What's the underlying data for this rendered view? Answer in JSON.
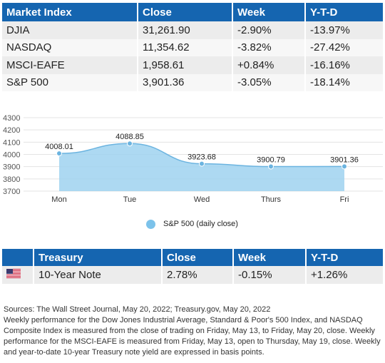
{
  "market_table": {
    "headers": [
      "Market Index",
      "Close",
      "Week",
      "Y-T-D"
    ],
    "rows": [
      [
        "DJIA",
        "31,261.90",
        "-2.90%",
        "-13.97%"
      ],
      [
        "NASDAQ",
        "11,354.62",
        "-3.82%",
        "-27.42%"
      ],
      [
        "MSCI-EAFE",
        "1,958.61",
        "+0.84%",
        "-16.16%"
      ],
      [
        "S&P 500",
        "3,901.36",
        "-3.05%",
        "-18.14%"
      ]
    ]
  },
  "chart_data": {
    "type": "area",
    "categories": [
      "Mon",
      "Tue",
      "Wed",
      "Thurs",
      "Fri"
    ],
    "series": [
      {
        "name": "S&P 500 (daily close)",
        "values": [
          4008.01,
          4088.85,
          3923.68,
          3900.79,
          3901.36
        ]
      }
    ],
    "data_labels": [
      "4008.01",
      "4088.85",
      "3923.68",
      "3900.79",
      "3901.36"
    ],
    "yticks": [
      "3700",
      "3800",
      "3900",
      "4000",
      "4100",
      "4200",
      "4300"
    ],
    "ylim": [
      3700,
      4300
    ],
    "grid": true,
    "legend_position": "bottom",
    "colors": {
      "fill": "#9fd2f0",
      "line": "#6cb4e0",
      "point": "#6cb4e0"
    }
  },
  "treasury_table": {
    "headers": [
      "",
      "Treasury",
      "Close",
      "Week",
      "Y-T-D"
    ],
    "row": {
      "icon": "us-flag-icon",
      "label": "10-Year Note",
      "close": "2.78%",
      "week": "-0.15%",
      "ytd": "+1.26%"
    }
  },
  "notes": {
    "line1": "Sources: The Wall Street Journal, May 20, 2022; Treasury.gov, May 20, 2022",
    "line2": "Weekly performance for the Dow Jones Industrial Average, Standard & Poor's 500 Index, and NASDAQ Composite Index is measured from the close of trading on Friday, May 13, to Friday, May 20, close. Weekly performance for the MSCI-EAFE is measured from Friday, May 13, open to Thursday, May 19, close. Weekly and year-to-date 10-year Treasury note yield are expressed in basis points."
  },
  "colors": {
    "header_bg": "#1565b0",
    "row_odd": "#ececec",
    "row_even": "#f7f7f7"
  }
}
